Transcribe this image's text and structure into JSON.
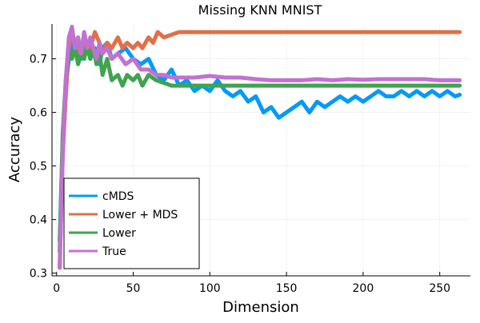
{
  "chart_data": {
    "type": "line",
    "title": "Missing KNN MNIST",
    "xlabel": "Dimension",
    "ylabel": "Accuracy",
    "xlim": [
      -3,
      270
    ],
    "ylim": [
      0.295,
      0.765
    ],
    "xticks": [
      0,
      50,
      100,
      150,
      200,
      250
    ],
    "yticks": [
      0.3,
      0.4,
      0.5,
      0.6,
      0.7
    ],
    "ytick_labels": [
      "0.3",
      "0.4",
      "0.5",
      "0.6",
      "0.7"
    ],
    "grid": true,
    "legend_position": "bottom-left",
    "series": [
      {
        "name": "cMDS",
        "color": "#009AFA",
        "x": [
          2,
          4,
          6,
          8,
          10,
          12,
          14,
          16,
          18,
          20,
          22,
          25,
          28,
          30,
          33,
          36,
          40,
          45,
          50,
          55,
          60,
          65,
          70,
          75,
          80,
          85,
          90,
          95,
          100,
          105,
          110,
          115,
          120,
          125,
          130,
          135,
          140,
          145,
          150,
          155,
          160,
          165,
          170,
          175,
          180,
          185,
          190,
          195,
          200,
          205,
          210,
          215,
          220,
          225,
          230,
          235,
          240,
          245,
          250,
          255,
          260,
          263
        ],
        "values": [
          0.36,
          0.55,
          0.65,
          0.7,
          0.73,
          0.71,
          0.74,
          0.7,
          0.73,
          0.72,
          0.7,
          0.72,
          0.69,
          0.72,
          0.73,
          0.7,
          0.71,
          0.72,
          0.7,
          0.69,
          0.7,
          0.67,
          0.66,
          0.68,
          0.65,
          0.66,
          0.64,
          0.65,
          0.64,
          0.66,
          0.64,
          0.63,
          0.64,
          0.62,
          0.63,
          0.6,
          0.61,
          0.59,
          0.6,
          0.61,
          0.62,
          0.6,
          0.62,
          0.61,
          0.62,
          0.63,
          0.62,
          0.63,
          0.62,
          0.63,
          0.64,
          0.63,
          0.63,
          0.64,
          0.63,
          0.64,
          0.63,
          0.64,
          0.63,
          0.64,
          0.63,
          0.633
        ]
      },
      {
        "name": "Lower + MDS",
        "color": "#E26F46",
        "x": [
          2,
          4,
          6,
          8,
          10,
          12,
          15,
          18,
          20,
          23,
          25,
          28,
          30,
          33,
          36,
          40,
          43,
          46,
          50,
          53,
          56,
          60,
          63,
          66,
          70,
          75,
          80,
          90,
          100,
          150,
          200,
          263
        ],
        "values": [
          0.31,
          0.52,
          0.63,
          0.72,
          0.75,
          0.73,
          0.7,
          0.74,
          0.71,
          0.73,
          0.75,
          0.73,
          0.71,
          0.73,
          0.72,
          0.74,
          0.72,
          0.73,
          0.72,
          0.73,
          0.72,
          0.74,
          0.73,
          0.75,
          0.74,
          0.745,
          0.75,
          0.75,
          0.75,
          0.75,
          0.75,
          0.75
        ]
      },
      {
        "name": "Lower",
        "color": "#3EA44E",
        "x": [
          2,
          4,
          6,
          8,
          10,
          12,
          14,
          16,
          18,
          20,
          22,
          24,
          26,
          28,
          30,
          33,
          36,
          40,
          43,
          46,
          50,
          53,
          56,
          60,
          65,
          70,
          75,
          80,
          90,
          100,
          150,
          200,
          263
        ],
        "values": [
          0.34,
          0.56,
          0.66,
          0.71,
          0.7,
          0.72,
          0.69,
          0.71,
          0.7,
          0.73,
          0.7,
          0.72,
          0.69,
          0.71,
          0.67,
          0.7,
          0.66,
          0.67,
          0.65,
          0.67,
          0.66,
          0.67,
          0.65,
          0.67,
          0.66,
          0.655,
          0.65,
          0.65,
          0.65,
          0.65,
          0.65,
          0.65,
          0.65
        ]
      },
      {
        "name": "True",
        "color": "#C271D2",
        "x": [
          2,
          4,
          6,
          8,
          10,
          12,
          14,
          16,
          18,
          20,
          22,
          24,
          26,
          28,
          30,
          33,
          36,
          40,
          45,
          50,
          55,
          60,
          65,
          70,
          75,
          80,
          90,
          100,
          110,
          120,
          130,
          140,
          150,
          160,
          170,
          180,
          190,
          200,
          210,
          220,
          230,
          240,
          250,
          263
        ],
        "values": [
          0.31,
          0.52,
          0.66,
          0.74,
          0.76,
          0.72,
          0.74,
          0.71,
          0.75,
          0.72,
          0.74,
          0.72,
          0.7,
          0.73,
          0.71,
          0.72,
          0.7,
          0.71,
          0.69,
          0.7,
          0.68,
          0.68,
          0.67,
          0.67,
          0.665,
          0.665,
          0.665,
          0.668,
          0.665,
          0.665,
          0.662,
          0.66,
          0.66,
          0.66,
          0.662,
          0.66,
          0.662,
          0.661,
          0.662,
          0.662,
          0.662,
          0.662,
          0.66,
          0.66
        ]
      }
    ]
  }
}
